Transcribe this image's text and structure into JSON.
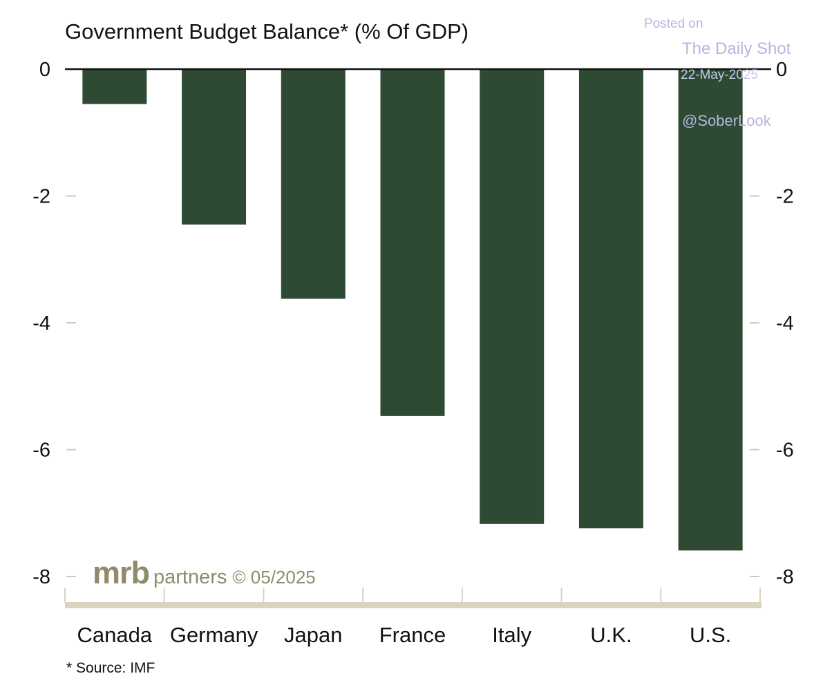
{
  "chart_data": {
    "type": "bar",
    "title": "Government Budget Balance* (% Of GDP)",
    "categories": [
      "Canada",
      "Germany",
      "Japan",
      "France",
      "Italy",
      "U.K.",
      "U.S."
    ],
    "series": [
      {
        "values": [
          -0.55,
          -2.45,
          -3.62,
          -5.47,
          -7.17,
          -7.24,
          -7.59
        ]
      }
    ],
    "ylim": [
      -8,
      0
    ],
    "yticks": [
      0,
      -2,
      -4,
      -6,
      -8
    ],
    "ytick_labels": [
      "0",
      "-2",
      "-4",
      "-6",
      "-8"
    ],
    "y_axis_sides": "left and right",
    "xlabel": "",
    "ylabel": "",
    "grid": false,
    "legend": "none",
    "colors": {
      "bar": "#2e4a33",
      "zero_line": "#111111",
      "axis_band": "#d8d4c0",
      "tick": "#cfc7c0"
    }
  },
  "footnote": "* Source: IMF",
  "logo": {
    "mark": "mrb",
    "word": "partners",
    "stamp": "© 05/2025"
  },
  "watermark": {
    "posted": "Posted on",
    "site": "The Daily Shot",
    "date": "22-May-2025",
    "handle": "@SoberLook"
  }
}
